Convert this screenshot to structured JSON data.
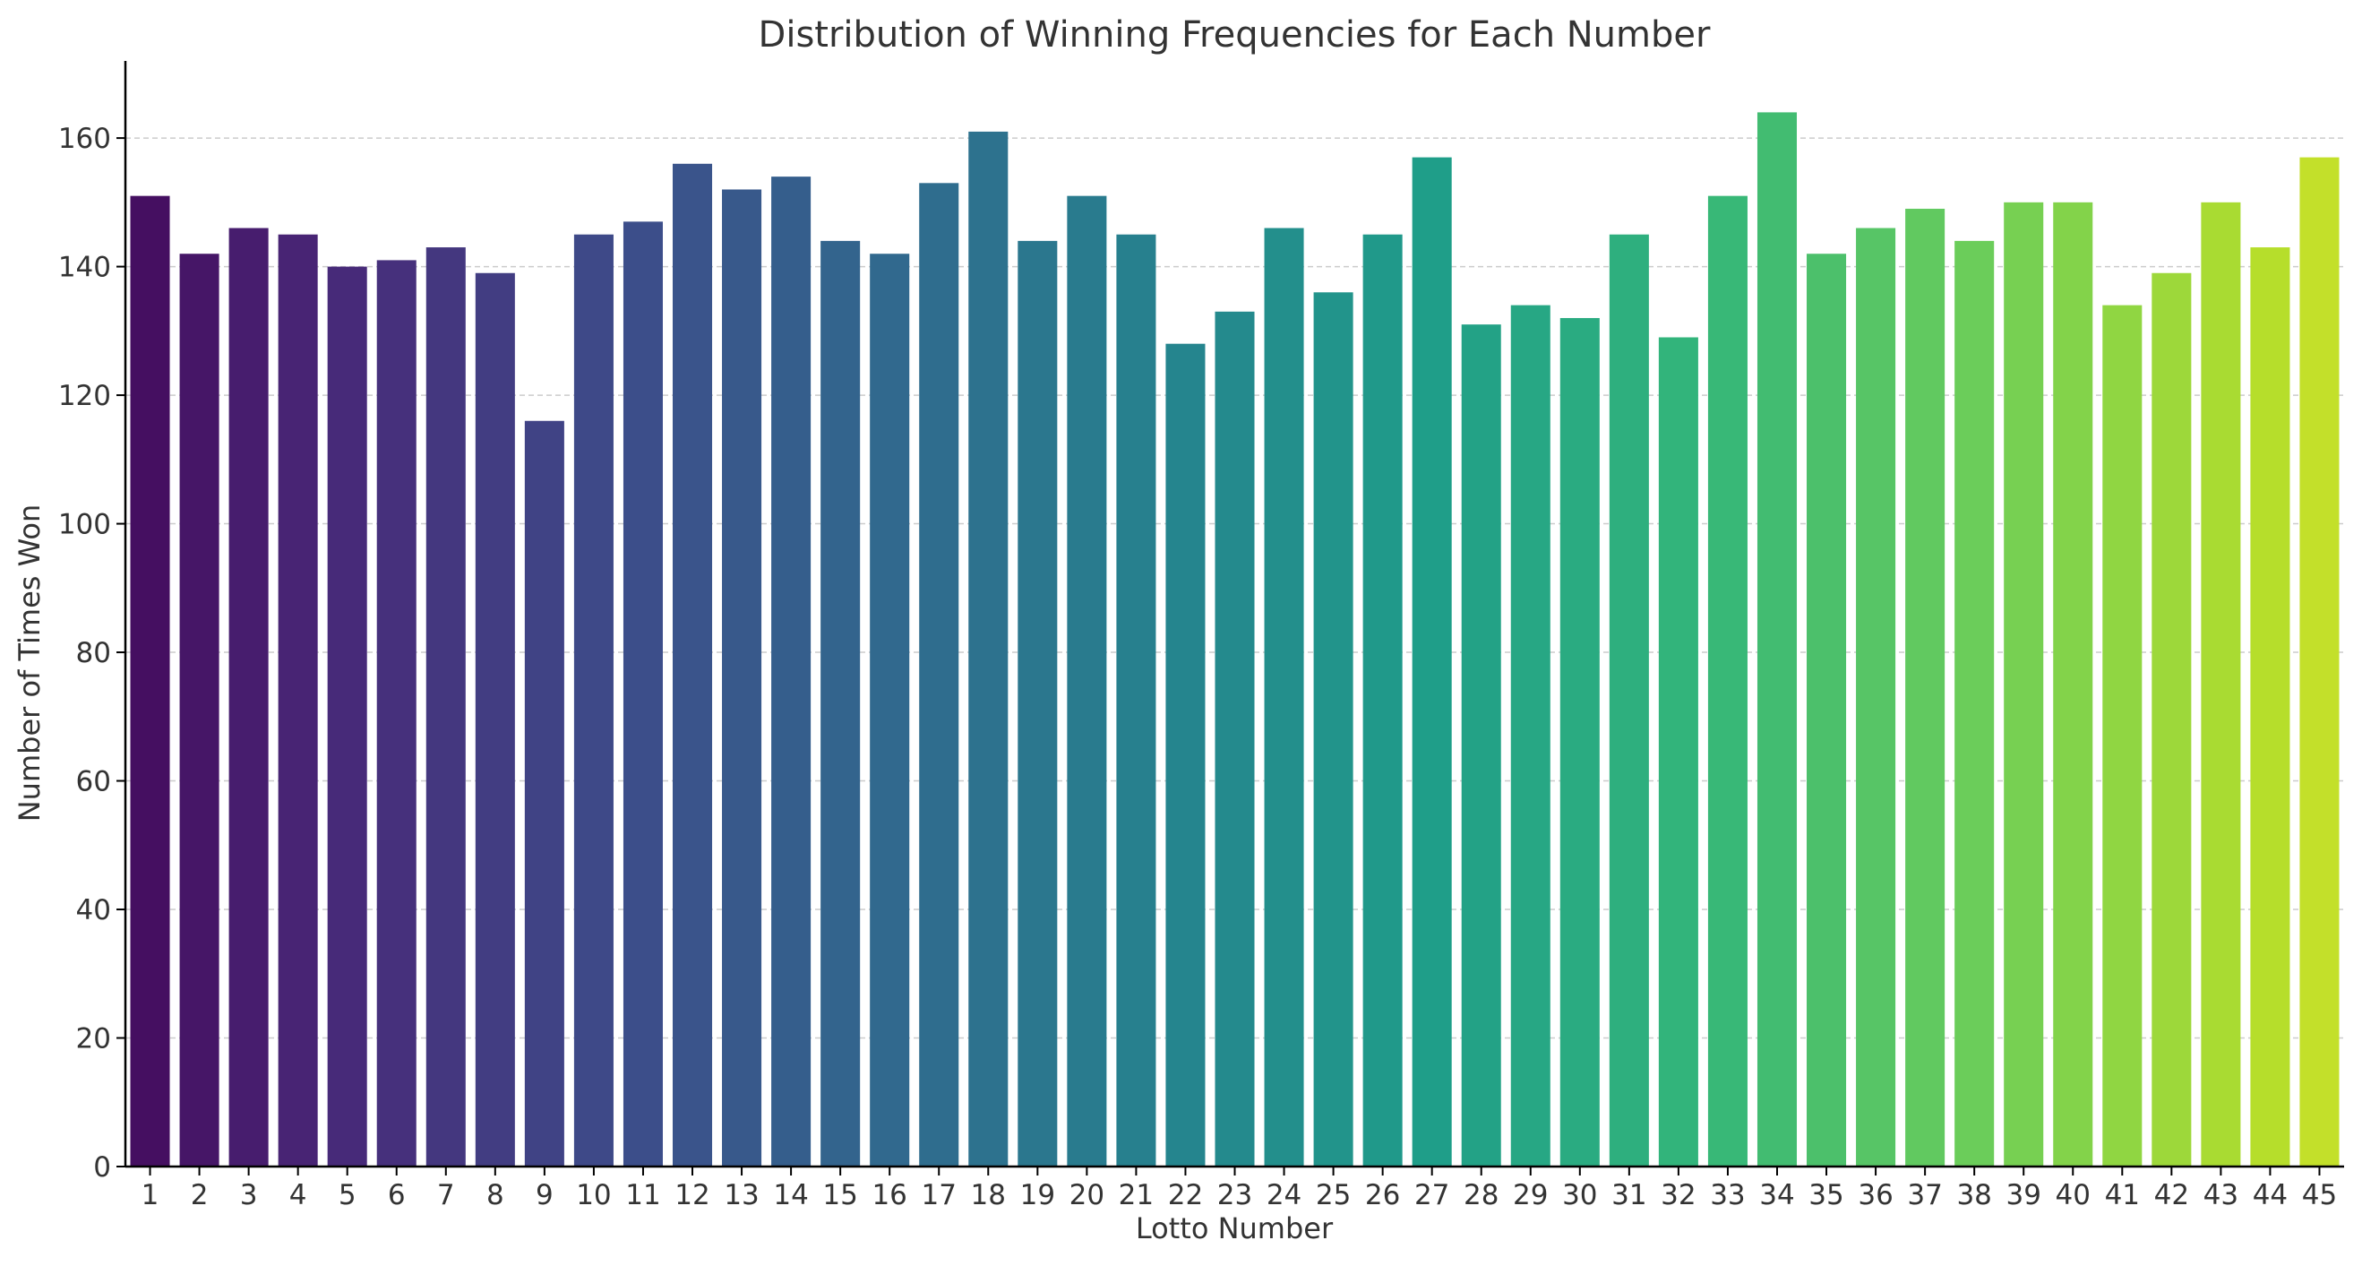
{
  "chart_data": {
    "type": "bar",
    "title": "Distribution of Winning Frequencies for Each Number",
    "xlabel": "Lotto Number",
    "ylabel": "Number of Times Won",
    "ylim": [
      0,
      172
    ],
    "yticks": [
      0,
      20,
      40,
      60,
      80,
      100,
      120,
      140,
      160
    ],
    "grid": "y-dashed",
    "palette": "viridis",
    "categories": [
      "1",
      "2",
      "3",
      "4",
      "5",
      "6",
      "7",
      "8",
      "9",
      "10",
      "11",
      "12",
      "13",
      "14",
      "15",
      "16",
      "17",
      "18",
      "19",
      "20",
      "21",
      "22",
      "23",
      "24",
      "25",
      "26",
      "27",
      "28",
      "29",
      "30",
      "31",
      "32",
      "33",
      "34",
      "35",
      "36",
      "37",
      "38",
      "39",
      "40",
      "41",
      "42",
      "43",
      "44",
      "45"
    ],
    "values": [
      151,
      142,
      146,
      145,
      140,
      141,
      143,
      139,
      116,
      145,
      147,
      156,
      152,
      154,
      144,
      142,
      153,
      161,
      144,
      151,
      145,
      128,
      133,
      146,
      136,
      145,
      157,
      131,
      134,
      132,
      145,
      129,
      151,
      164,
      142,
      146,
      149,
      144,
      150,
      150,
      134,
      139,
      150,
      143,
      157
    ]
  }
}
